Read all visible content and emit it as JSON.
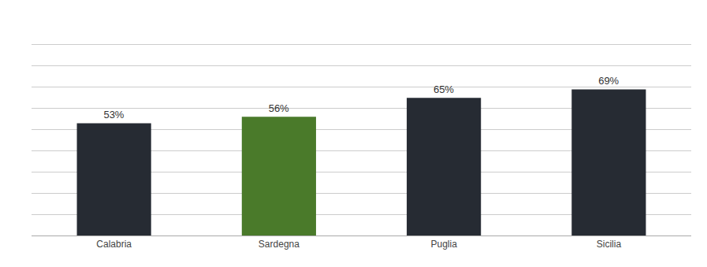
{
  "chart_data": {
    "type": "bar",
    "categories": [
      "Calabria",
      "Sardegna",
      "Puglia",
      "Sicilia"
    ],
    "values": [
      53,
      56,
      65,
      69
    ],
    "value_labels": [
      "53%",
      "56%",
      "65%",
      "69%"
    ],
    "data_labels": true,
    "colors": [
      "#262b33",
      "#4a7a2a",
      "#262b33",
      "#262b33"
    ],
    "ylim": [
      0,
      100
    ],
    "yticks": [
      0,
      10,
      20,
      30,
      40,
      50,
      60,
      70,
      80,
      90,
      100
    ],
    "grid": true,
    "tick_labels": "x"
  }
}
